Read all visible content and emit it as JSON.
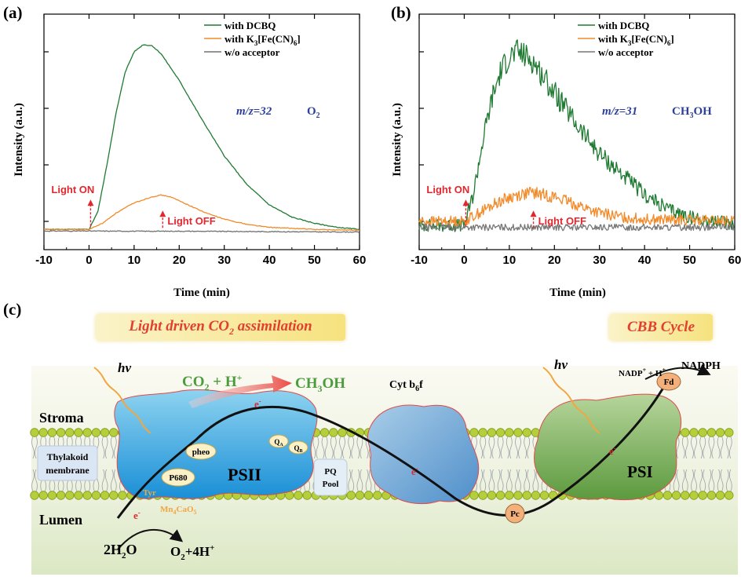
{
  "panels": {
    "a": "(a)",
    "b": "(b)",
    "c": "(c)"
  },
  "chart_data": [
    {
      "type": "line",
      "panel": "(a)",
      "xlabel": "Time (min)",
      "ylabel": "Intensity (a.u.)",
      "xlim": [
        -10,
        60
      ],
      "ylim": [
        0,
        1
      ],
      "x_ticks": [
        -10,
        0,
        10,
        20,
        30,
        40,
        50,
        60
      ],
      "legend_position": "top-right",
      "annotation": {
        "mz": "m/z=32",
        "species": "O2"
      },
      "markers": [
        {
          "label": "Light ON",
          "x": 0
        },
        {
          "label": "Light  OFF",
          "x": 16
        }
      ],
      "series": [
        {
          "name": "with DCBQ",
          "color": "#1f7a32",
          "points": [
            [
              -10,
              0.03
            ],
            [
              0,
              0.03
            ],
            [
              2,
              0.12
            ],
            [
              4,
              0.35
            ],
            [
              6,
              0.6
            ],
            [
              8,
              0.8
            ],
            [
              10,
              0.9
            ],
            [
              12,
              0.935
            ],
            [
              14,
              0.93
            ],
            [
              16,
              0.89
            ],
            [
              20,
              0.76
            ],
            [
              25,
              0.57
            ],
            [
              30,
              0.39
            ],
            [
              35,
              0.25
            ],
            [
              40,
              0.15
            ],
            [
              45,
              0.09
            ],
            [
              50,
              0.06
            ],
            [
              55,
              0.04
            ],
            [
              60,
              0.03
            ]
          ]
        },
        {
          "name": "with K3[Fe(CN)6]",
          "color": "#f28a2a",
          "points": [
            [
              -10,
              0.03
            ],
            [
              0,
              0.03
            ],
            [
              3,
              0.06
            ],
            [
              6,
              0.11
            ],
            [
              10,
              0.16
            ],
            [
              14,
              0.19
            ],
            [
              16,
              0.198
            ],
            [
              18,
              0.19
            ],
            [
              22,
              0.15
            ],
            [
              26,
              0.11
            ],
            [
              30,
              0.08
            ],
            [
              35,
              0.055
            ],
            [
              40,
              0.04
            ],
            [
              50,
              0.03
            ],
            [
              60,
              0.025
            ]
          ]
        },
        {
          "name": "w/o acceptor",
          "color": "#707070",
          "points": [
            [
              -10,
              0.022
            ],
            [
              0,
              0.022
            ],
            [
              10,
              0.021
            ],
            [
              20,
              0.021
            ],
            [
              30,
              0.02
            ],
            [
              40,
              0.019
            ],
            [
              50,
              0.018
            ],
            [
              60,
              0.017
            ]
          ]
        }
      ]
    },
    {
      "type": "line",
      "panel": "(b)",
      "xlabel": "Time (min)",
      "ylabel": "Intensity (a.u.)",
      "xlim": [
        -10,
        60
      ],
      "ylim": [
        0,
        1
      ],
      "x_ticks": [
        -10,
        0,
        10,
        20,
        30,
        40,
        50,
        60
      ],
      "legend_position": "top-right",
      "annotation": {
        "mz": "m/z=31",
        "species": "CH3OH"
      },
      "markers": [
        {
          "label": "Light ON",
          "x": 0
        },
        {
          "label": "Light  OFF",
          "x": 15
        }
      ],
      "series": [
        {
          "name": "with DCBQ",
          "color": "#1f7a32",
          "noise": 0.05,
          "points": [
            [
              -10,
              0.05
            ],
            [
              0,
              0.05
            ],
            [
              2,
              0.2
            ],
            [
              4,
              0.45
            ],
            [
              6,
              0.66
            ],
            [
              8,
              0.8
            ],
            [
              10,
              0.88
            ],
            [
              12,
              0.9
            ],
            [
              15,
              0.86
            ],
            [
              20,
              0.7
            ],
            [
              25,
              0.54
            ],
            [
              30,
              0.4
            ],
            [
              35,
              0.3
            ],
            [
              40,
              0.2
            ],
            [
              45,
              0.13
            ],
            [
              50,
              0.09
            ],
            [
              55,
              0.07
            ],
            [
              60,
              0.06
            ]
          ]
        },
        {
          "name": "with K3[Fe(CN)6]",
          "color": "#f28a2a",
          "noise": 0.04,
          "points": [
            [
              -10,
              0.07
            ],
            [
              0,
              0.07
            ],
            [
              4,
              0.12
            ],
            [
              8,
              0.17
            ],
            [
              12,
              0.2
            ],
            [
              15,
              0.21
            ],
            [
              20,
              0.19
            ],
            [
              25,
              0.15
            ],
            [
              30,
              0.11
            ],
            [
              35,
              0.09
            ],
            [
              40,
              0.08
            ],
            [
              50,
              0.075
            ],
            [
              60,
              0.07
            ]
          ]
        },
        {
          "name": "w/o acceptor",
          "color": "#777777",
          "noise": 0.025,
          "points": [
            [
              -10,
              0.04
            ],
            [
              60,
              0.04
            ]
          ]
        }
      ]
    }
  ],
  "schematic": {
    "banner_left": "Light driven CO2 assimilation",
    "banner_right": "CBB Cycle",
    "hv": "hv",
    "stroma": "Stroma",
    "lumen": "Lumen",
    "thylakoid_line1": "Thylakoid",
    "thylakoid_line2": "membrane",
    "psii": "PSII",
    "psi": "PSI",
    "pheo": "pheo",
    "p680": "P680",
    "tyr": "Tyr",
    "mn": "Mn4CaO5",
    "qa": "QA",
    "qb": "QB",
    "pq_line1": "PQ",
    "pq_line2": "Pool",
    "cyt": "Cyt b6f",
    "pc": "Pc",
    "fd": "Fd",
    "co2": "CO2 + H+",
    "ch3oh": "CH3OH",
    "nadp": "NADP+ + H+",
    "nadph": "NADPH",
    "h2o": "2H2O",
    "o2": "O2+4H+",
    "electron": "e-"
  }
}
